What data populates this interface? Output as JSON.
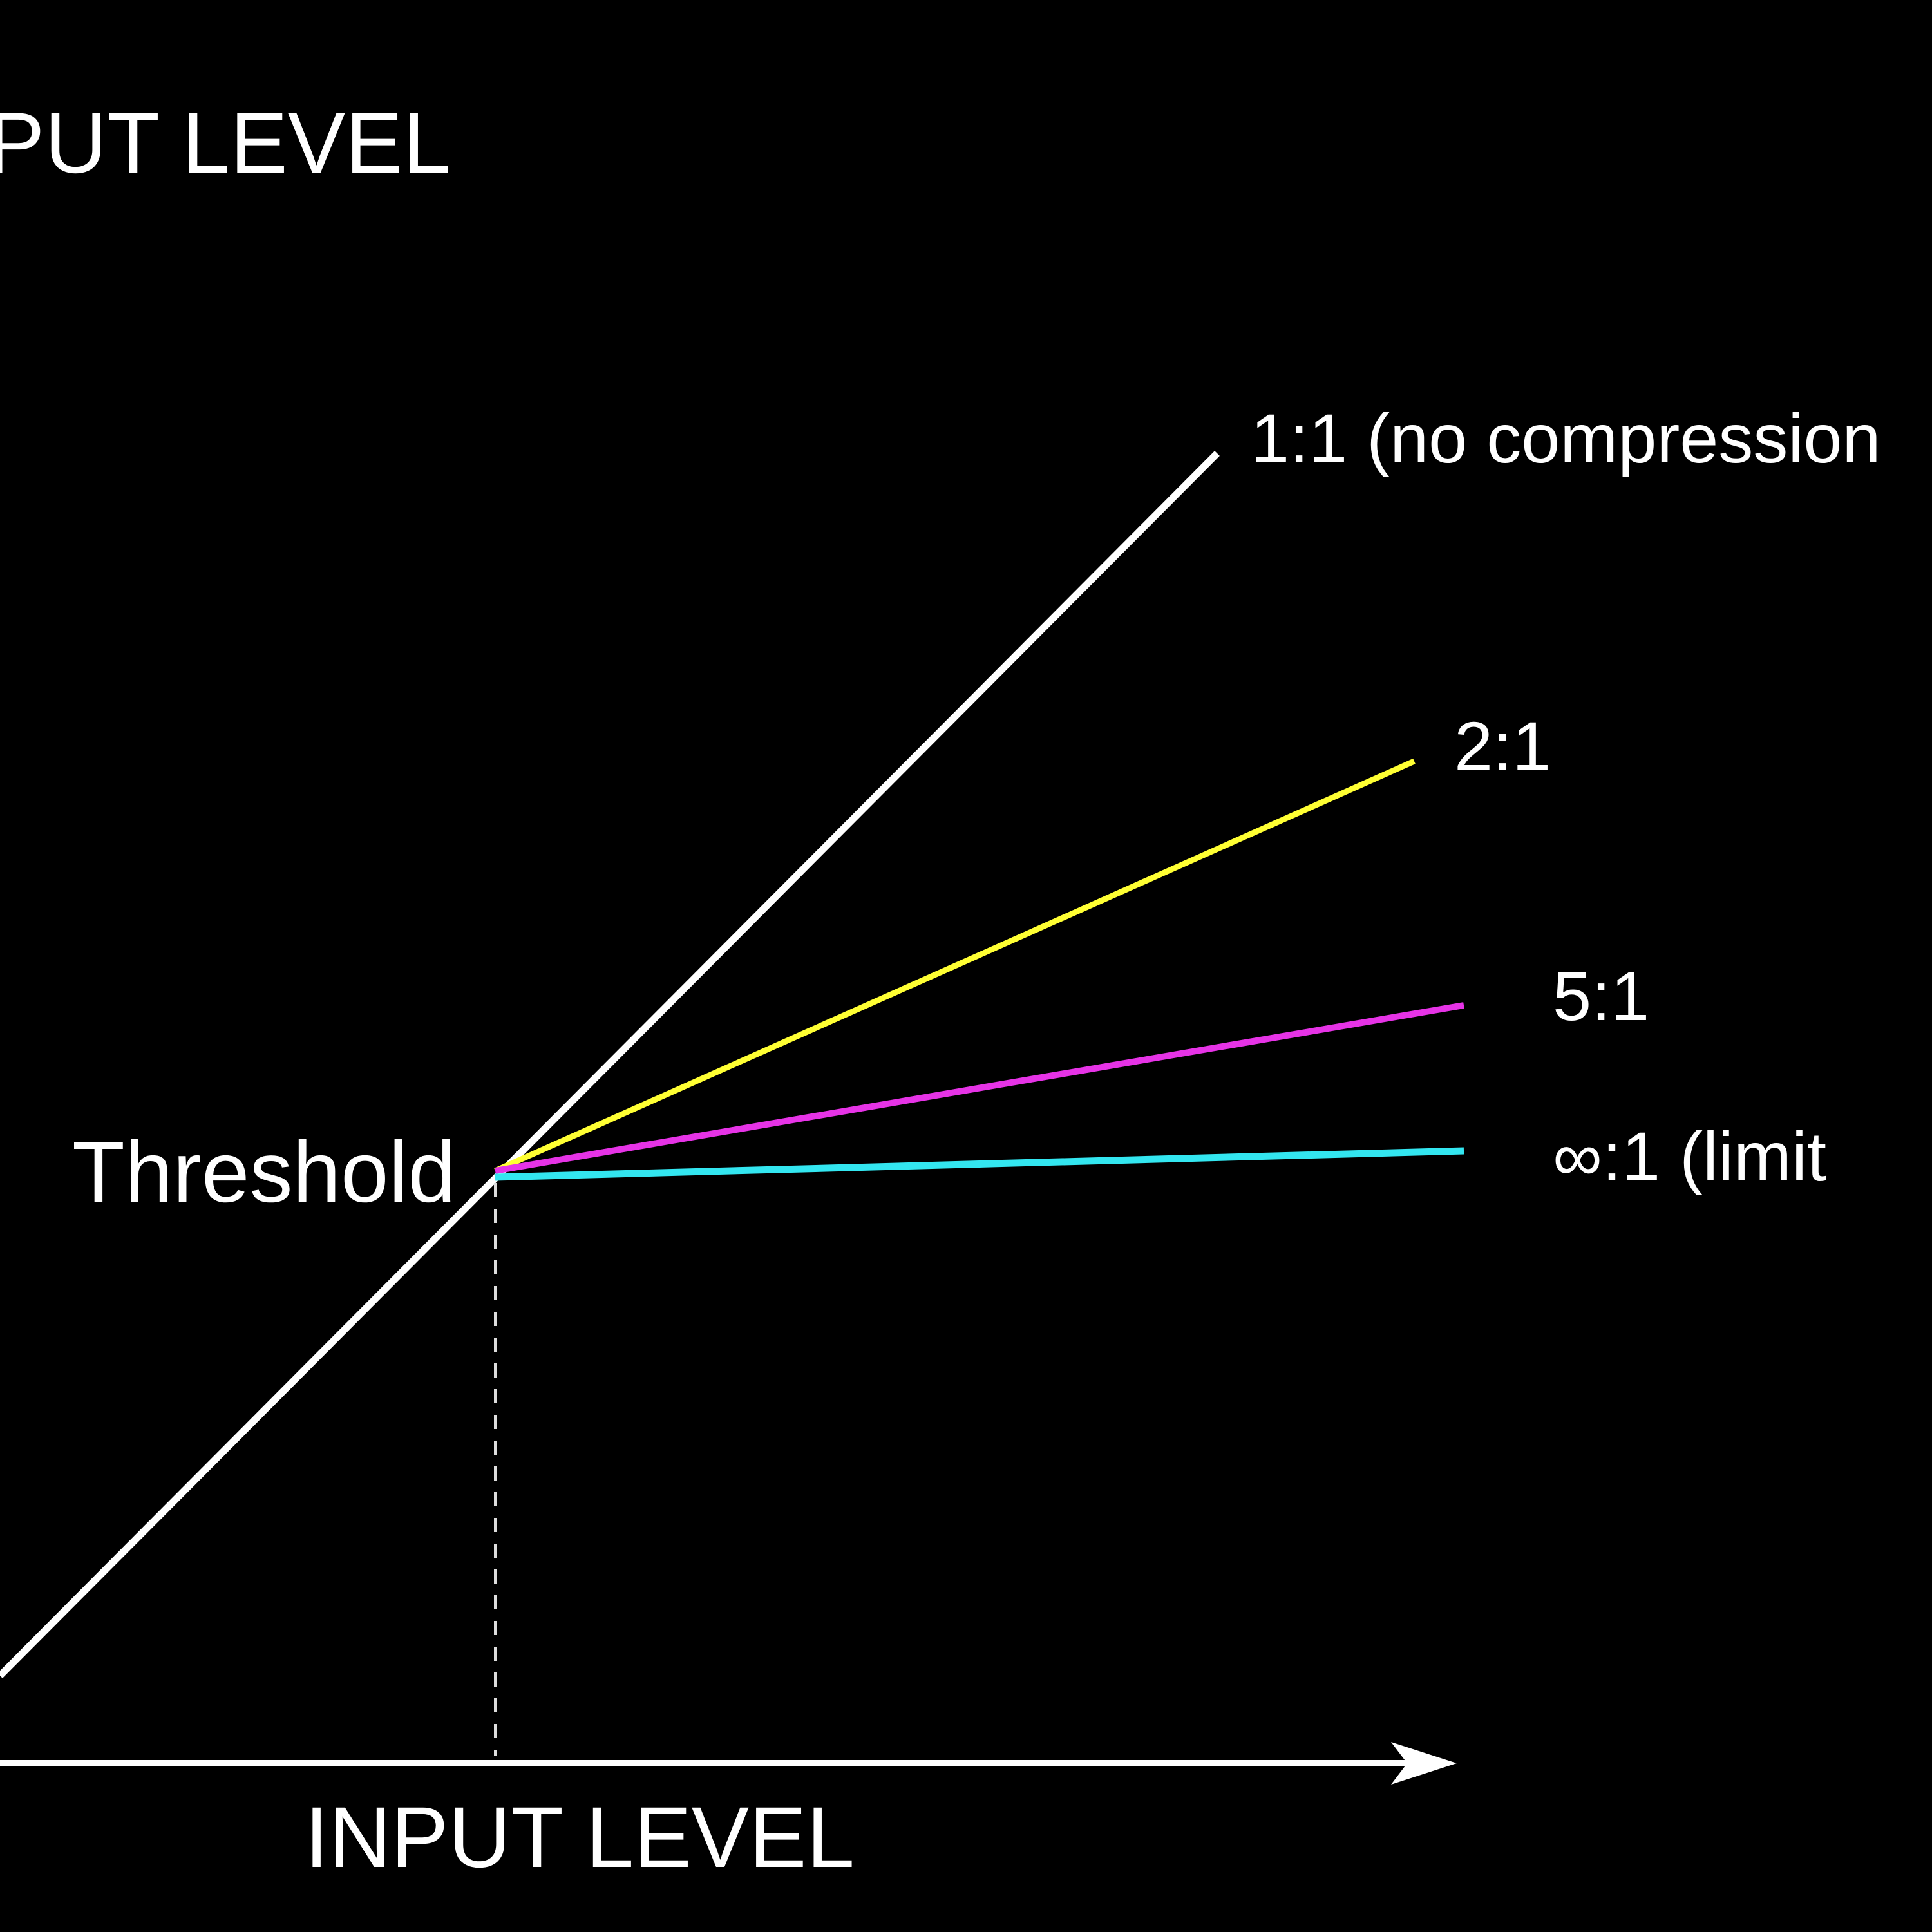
{
  "axes": {
    "output": "PUT LEVEL",
    "input": "INPUT LEVEL"
  },
  "threshold": "Threshold",
  "ratios": [
    "1:1 (no compression",
    "2:1",
    "5:1",
    "∞:1 (limit"
  ]
}
